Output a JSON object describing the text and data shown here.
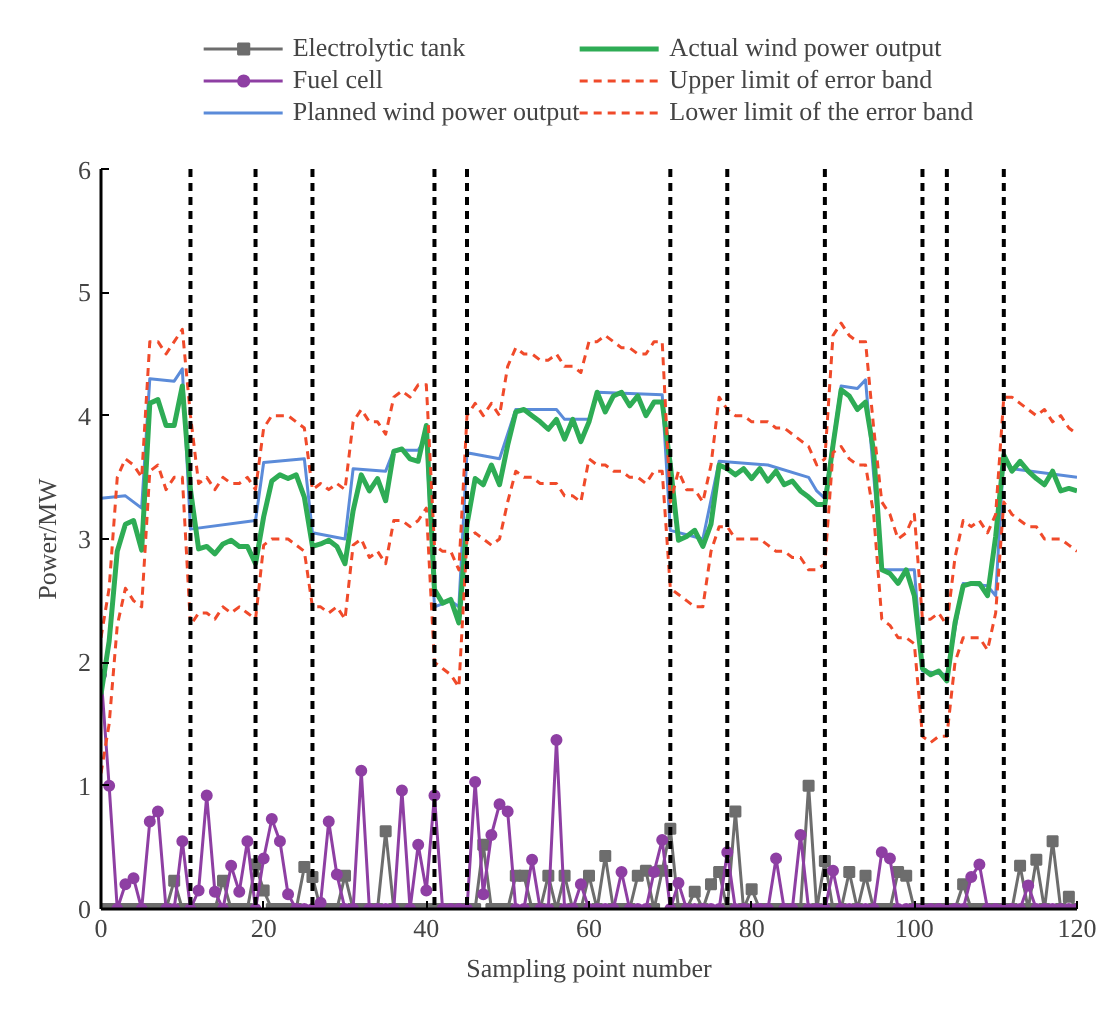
{
  "chart_data": {
    "type": "line",
    "xlabel": "Sampling point number",
    "ylabel": "Power/MW",
    "xlim": [
      0,
      120
    ],
    "xticks": [
      0,
      20,
      40,
      60,
      80,
      100,
      120
    ],
    "ylim": [
      0,
      6
    ],
    "yticks": [
      0,
      1,
      2,
      3,
      4,
      5,
      6
    ],
    "grid": false,
    "legend": "top",
    "x": [
      0,
      1,
      2,
      3,
      4,
      5,
      6,
      7,
      8,
      9,
      10,
      11,
      12,
      13,
      14,
      15,
      16,
      17,
      18,
      19,
      20,
      21,
      22,
      23,
      24,
      25,
      26,
      27,
      28,
      29,
      30,
      31,
      32,
      33,
      34,
      35,
      36,
      37,
      38,
      39,
      40,
      41,
      42,
      43,
      44,
      45,
      46,
      47,
      48,
      49,
      50,
      51,
      52,
      53,
      54,
      55,
      56,
      57,
      58,
      59,
      60,
      61,
      62,
      63,
      64,
      65,
      66,
      67,
      68,
      69,
      70,
      71,
      72,
      73,
      74,
      75,
      76,
      77,
      78,
      79,
      80,
      81,
      82,
      83,
      84,
      85,
      86,
      87,
      88,
      89,
      90,
      91,
      92,
      93,
      94,
      95,
      96,
      97,
      98,
      99,
      100,
      101,
      102,
      103,
      104,
      105,
      106,
      107,
      108,
      109,
      110,
      111,
      112,
      113,
      114,
      115,
      116,
      117,
      118,
      119,
      120
    ],
    "series": [
      {
        "name": "Electrolytic tank",
        "color": "#6d6d6d",
        "marker": "square",
        "values": [
          0,
          0,
          0,
          0,
          0,
          0,
          0,
          0,
          0,
          0.23,
          0,
          0,
          0,
          0,
          0,
          0.23,
          0,
          0,
          0,
          0.36,
          0.15,
          0,
          0,
          0,
          0,
          0.34,
          0.26,
          0,
          0,
          0,
          0.27,
          0,
          0,
          0,
          0,
          0.63,
          0,
          0,
          0,
          0,
          0,
          0,
          0,
          0,
          0,
          0,
          0,
          0.52,
          0,
          0,
          0,
          0.27,
          0.27,
          0,
          0,
          0.27,
          0,
          0.27,
          0,
          0,
          0.27,
          0,
          0.43,
          0,
          0,
          0,
          0.27,
          0.31,
          0,
          0.31,
          0.65,
          0,
          0,
          0.14,
          0,
          0.2,
          0.3,
          0,
          0.79,
          0,
          0.16,
          0,
          0,
          0,
          0,
          0,
          0,
          1.0,
          0,
          0.39,
          0,
          0,
          0.3,
          0,
          0.27,
          0,
          0,
          0,
          0.3,
          0.27,
          0,
          0,
          0,
          0,
          0,
          0,
          0.2,
          0,
          0,
          0,
          0,
          0,
          0,
          0.35,
          0,
          0.4,
          0,
          0.55,
          0,
          0.1,
          0
        ]
      },
      {
        "name": "Fuel cell",
        "color": "#8e3fa3",
        "marker": "circle",
        "values": [
          1.9,
          1.0,
          0,
          0.2,
          0.25,
          0,
          0.71,
          0.79,
          0,
          0,
          0.55,
          0,
          0.15,
          0.92,
          0.14,
          0,
          0.35,
          0.14,
          0.55,
          0,
          0.41,
          0.73,
          0.55,
          0.12,
          0,
          0,
          0,
          0.05,
          0.71,
          0.28,
          0,
          0,
          1.12,
          0,
          0,
          0,
          0,
          0.96,
          0,
          0.52,
          0.15,
          0.92,
          0,
          0,
          0,
          0,
          1.03,
          0.12,
          0.6,
          0.85,
          0.79,
          0,
          0,
          0.4,
          0,
          0,
          1.37,
          0,
          0,
          0.2,
          0,
          0,
          0,
          0,
          0.3,
          0,
          0,
          0,
          0.3,
          0.56,
          0,
          0.21,
          0,
          0,
          0,
          0,
          0,
          0.46,
          0,
          0,
          0,
          0,
          0,
          0.41,
          0,
          0,
          0.6,
          0,
          0,
          0,
          0.31,
          0,
          0,
          0,
          0,
          0,
          0.46,
          0.41,
          0,
          0,
          0,
          0,
          0,
          0,
          0,
          0,
          0,
          0.26,
          0.36,
          0,
          0,
          0,
          0,
          0,
          0.19,
          0,
          0,
          0,
          0,
          0,
          0
        ]
      },
      {
        "name": "Planned wind power output",
        "color": "#5b8bd9",
        "marker": "none",
        "x": [
          0,
          3,
          5,
          6,
          9,
          10,
          11,
          19,
          20,
          25,
          26,
          30,
          31,
          35,
          36,
          39,
          40,
          41,
          43,
          44,
          45,
          49,
          51,
          56,
          57,
          60,
          61,
          69,
          70,
          74,
          76,
          82,
          87,
          88,
          89,
          91,
          93,
          94,
          96,
          100,
          101,
          104,
          106,
          109,
          110,
          111,
          112,
          120
        ],
        "values": [
          3.33,
          3.35,
          3.25,
          4.3,
          4.28,
          4.38,
          3.08,
          3.15,
          3.62,
          3.65,
          3.05,
          3.0,
          3.57,
          3.55,
          3.72,
          3.72,
          3.83,
          2.45,
          2.5,
          2.45,
          3.7,
          3.65,
          4.05,
          4.05,
          3.97,
          3.97,
          4.19,
          4.17,
          3.07,
          3.0,
          3.63,
          3.6,
          3.5,
          3.39,
          3.33,
          4.24,
          4.22,
          4.29,
          2.75,
          2.75,
          1.93,
          1.9,
          2.64,
          2.62,
          2.54,
          3.68,
          3.57,
          3.5
        ]
      },
      {
        "name": "Actual wind power output",
        "color": "#2eac55",
        "marker": "none",
        "values": [
          1.74,
          2.17,
          2.9,
          3.12,
          3.15,
          2.91,
          4.1,
          4.13,
          3.92,
          3.92,
          4.24,
          3.4,
          2.92,
          2.94,
          2.88,
          2.96,
          2.99,
          2.94,
          2.94,
          2.8,
          3.18,
          3.47,
          3.52,
          3.49,
          3.52,
          3.34,
          2.94,
          2.96,
          2.99,
          2.94,
          2.8,
          3.23,
          3.52,
          3.39,
          3.49,
          3.31,
          3.71,
          3.73,
          3.65,
          3.63,
          3.92,
          2.59,
          2.48,
          2.51,
          2.32,
          3.12,
          3.49,
          3.44,
          3.6,
          3.44,
          3.76,
          4.03,
          4.05,
          4.0,
          3.95,
          3.89,
          3.97,
          3.81,
          3.97,
          3.79,
          3.95,
          4.19,
          4.03,
          4.16,
          4.19,
          4.08,
          4.16,
          4.0,
          4.11,
          4.11,
          3.6,
          2.99,
          3.02,
          3.07,
          2.94,
          3.12,
          3.6,
          3.57,
          3.52,
          3.57,
          3.49,
          3.57,
          3.47,
          3.55,
          3.44,
          3.47,
          3.39,
          3.34,
          3.28,
          3.28,
          3.76,
          4.21,
          4.16,
          4.05,
          4.11,
          3.71,
          2.75,
          2.72,
          2.64,
          2.75,
          2.54,
          1.95,
          1.9,
          1.93,
          1.85,
          2.32,
          2.62,
          2.64,
          2.64,
          2.54,
          3.02,
          3.68,
          3.55,
          3.63,
          3.55,
          3.49,
          3.44,
          3.55,
          3.39,
          3.41,
          3.39
        ]
      },
      {
        "name": "Upper limit of error band",
        "color": "#f04a2a",
        "marker": "none",
        "line_style": "dashed",
        "values": [
          2.2,
          2.6,
          3.5,
          3.65,
          3.6,
          3.5,
          4.6,
          4.6,
          4.5,
          4.6,
          4.7,
          4.0,
          3.45,
          3.5,
          3.4,
          3.5,
          3.45,
          3.45,
          3.5,
          3.4,
          3.9,
          4.0,
          4.0,
          4.0,
          3.95,
          3.9,
          3.4,
          3.45,
          3.4,
          3.45,
          3.4,
          3.95,
          4.05,
          3.95,
          3.95,
          3.85,
          4.15,
          4.2,
          4.15,
          4.25,
          4.25,
          2.95,
          2.9,
          2.9,
          2.75,
          4.0,
          4.1,
          4.0,
          4.1,
          4.0,
          4.4,
          4.55,
          4.5,
          4.5,
          4.45,
          4.45,
          4.5,
          4.4,
          4.4,
          4.35,
          4.6,
          4.6,
          4.65,
          4.6,
          4.55,
          4.55,
          4.5,
          4.5,
          4.6,
          4.6,
          3.3,
          3.55,
          3.4,
          3.4,
          3.3,
          3.6,
          4.15,
          4.05,
          4.0,
          4.0,
          3.95,
          3.95,
          3.95,
          3.9,
          3.9,
          3.85,
          3.8,
          3.75,
          3.6,
          3.65,
          4.65,
          4.75,
          4.65,
          4.6,
          4.6,
          3.9,
          3.3,
          3.2,
          3.0,
          3.05,
          3.2,
          2.35,
          2.35,
          2.4,
          2.3,
          2.85,
          3.15,
          3.1,
          3.15,
          3.05,
          3.2,
          4.15,
          4.15,
          4.1,
          4.05,
          4.0,
          4.05,
          3.95,
          4.0,
          3.9,
          3.85
        ]
      },
      {
        "name": "Lower limit of the error band",
        "color": "#f04a2a",
        "marker": "none",
        "line_style": "dashed",
        "values": [
          1.1,
          1.5,
          2.3,
          2.6,
          2.5,
          2.45,
          3.55,
          3.6,
          3.4,
          3.5,
          3.5,
          2.3,
          2.4,
          2.4,
          2.35,
          2.45,
          2.4,
          2.45,
          2.4,
          2.35,
          2.95,
          3.0,
          3.0,
          3.0,
          2.95,
          2.9,
          2.45,
          2.45,
          2.4,
          2.45,
          2.35,
          2.95,
          3.0,
          2.85,
          2.9,
          2.8,
          3.15,
          3.15,
          3.1,
          3.15,
          3.25,
          2.0,
          1.95,
          1.9,
          1.8,
          3.0,
          3.05,
          3.0,
          2.95,
          3.0,
          3.3,
          3.55,
          3.5,
          3.5,
          3.45,
          3.45,
          3.45,
          3.35,
          3.35,
          3.3,
          3.65,
          3.6,
          3.6,
          3.55,
          3.55,
          3.5,
          3.5,
          3.45,
          3.55,
          3.55,
          2.6,
          2.55,
          2.5,
          2.45,
          2.45,
          2.9,
          3.1,
          3.1,
          3.0,
          3.0,
          3.0,
          3.0,
          2.95,
          2.9,
          2.9,
          2.85,
          2.85,
          2.75,
          2.75,
          2.8,
          3.7,
          3.75,
          3.65,
          3.6,
          3.6,
          3.2,
          2.35,
          2.3,
          2.2,
          2.2,
          2.15,
          1.4,
          1.35,
          1.4,
          1.4,
          2.0,
          2.2,
          2.2,
          2.2,
          2.1,
          2.4,
          3.3,
          3.2,
          3.15,
          3.1,
          3.1,
          3.0,
          3.0,
          3.0,
          2.95,
          2.9
        ]
      }
    ],
    "ref_lines": [
      {
        "axis": "x",
        "value": 11,
        "color": "#000000",
        "line_style": "dashed"
      },
      {
        "axis": "x",
        "value": 19,
        "color": "#000000",
        "line_style": "dashed"
      },
      {
        "axis": "x",
        "value": 26,
        "color": "#000000",
        "line_style": "dashed"
      },
      {
        "axis": "x",
        "value": 41,
        "color": "#000000",
        "line_style": "dashed"
      },
      {
        "axis": "x",
        "value": 45,
        "color": "#000000",
        "line_style": "dashed"
      },
      {
        "axis": "x",
        "value": 70,
        "color": "#000000",
        "line_style": "dashed"
      },
      {
        "axis": "x",
        "value": 77,
        "color": "#000000",
        "line_style": "dashed"
      },
      {
        "axis": "x",
        "value": 89,
        "color": "#000000",
        "line_style": "dashed"
      },
      {
        "axis": "x",
        "value": 101,
        "color": "#000000",
        "line_style": "dashed"
      },
      {
        "axis": "x",
        "value": 104,
        "color": "#000000",
        "line_style": "dashed"
      },
      {
        "axis": "x",
        "value": 111,
        "color": "#000000",
        "line_style": "dashed"
      }
    ]
  }
}
